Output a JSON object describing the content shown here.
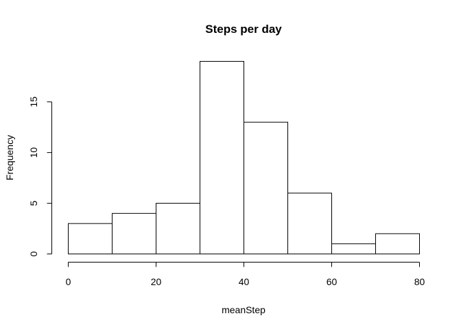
{
  "chart_data": {
    "type": "bar",
    "title": "Steps per day",
    "xlabel": "meanStep",
    "ylabel": "Frequency",
    "bins": [
      {
        "start": 0,
        "end": 10,
        "count": 3
      },
      {
        "start": 10,
        "end": 20,
        "count": 4
      },
      {
        "start": 20,
        "end": 30,
        "count": 5
      },
      {
        "start": 30,
        "end": 40,
        "count": 19
      },
      {
        "start": 40,
        "end": 50,
        "count": 13
      },
      {
        "start": 50,
        "end": 60,
        "count": 6
      },
      {
        "start": 60,
        "end": 70,
        "count": 1
      },
      {
        "start": 70,
        "end": 80,
        "count": 2
      }
    ],
    "xlim": [
      0,
      80
    ],
    "ylim": [
      0,
      19
    ],
    "x_ticks": [
      0,
      20,
      40,
      60,
      80
    ],
    "y_ticks": [
      0,
      5,
      10,
      15
    ],
    "grid": false,
    "legend": "none",
    "bar_fill": "#ffffff",
    "bar_stroke": "#000000"
  }
}
